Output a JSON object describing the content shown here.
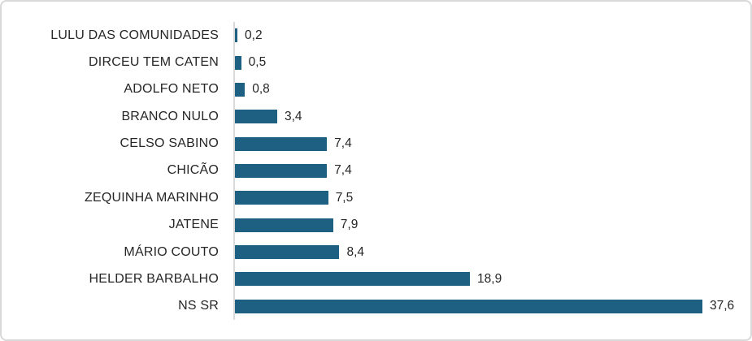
{
  "chart_data": {
    "type": "bar",
    "orientation": "horizontal",
    "title": "",
    "xlabel": "",
    "ylabel": "",
    "grid": false,
    "legend": false,
    "xlim": [
      0,
      40
    ],
    "decimal_separator": ",",
    "categories": [
      "LULU DAS COMUNIDADES",
      "DIRCEU TEM CATEN",
      "ADOLFO NETO",
      "BRANCO NULO",
      "CELSO SABINO",
      "CHICÃO",
      "ZEQUINHA MARINHO",
      "JATENE",
      "MÁRIO COUTO",
      "HELDER BARBALHO",
      "NS SR"
    ],
    "values": [
      0.2,
      0.5,
      0.8,
      3.4,
      7.4,
      7.4,
      7.5,
      7.9,
      8.4,
      18.9,
      37.6
    ],
    "value_labels": [
      "0,2",
      "0,5",
      "0,8",
      "3,4",
      "7,4",
      "7,4",
      "7,5",
      "7,9",
      "8,4",
      "18,9",
      "37,6"
    ],
    "bar_color": "#1e6082",
    "axis_line_color": "#d9d9d9",
    "frame_border_color": "#d9d9d9",
    "text_color": "#262626",
    "background_color": "#ffffff"
  }
}
